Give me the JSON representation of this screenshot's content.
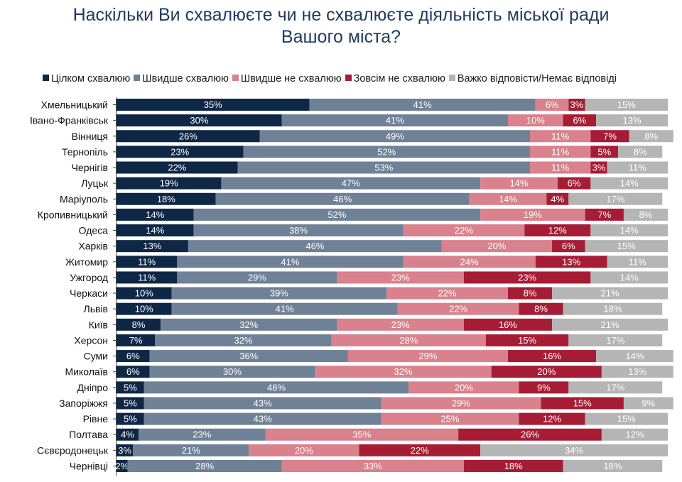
{
  "chart_data": {
    "type": "bar",
    "orientation": "horizontal",
    "stacked": true,
    "title_lines": [
      "Наскільки Ви схвалюєте чи не схвалюєте діяльність міської ради",
      "Вашого міста?"
    ],
    "legend_position": "top",
    "grid": false,
    "xlim": [
      0,
      100
    ],
    "categories": [
      "Хмельницький",
      "Івано-Франківськ",
      "Вінниця",
      "Тернопіль",
      "Чернігів",
      "Луцьк",
      "Маріуполь",
      "Кропивницький",
      "Одеса",
      "Харків",
      "Житомир",
      "Ужгород",
      "Черкаси",
      "Львів",
      "Київ",
      "Херсон",
      "Суми",
      "Миколаїв",
      "Дніпро",
      "Запоріжжя",
      "Рівне",
      "Полтава",
      "Сєвєродонецьк",
      "Чернівці"
    ],
    "series": [
      {
        "name": "Цілком схвалюю",
        "color": "#0f2746",
        "label_color": "#ffffff",
        "values": [
          35,
          30,
          26,
          23,
          22,
          19,
          18,
          14,
          14,
          13,
          11,
          11,
          10,
          10,
          8,
          7,
          6,
          6,
          5,
          5,
          5,
          4,
          3,
          2
        ]
      },
      {
        "name": "Швидше схвалюю",
        "color": "#6f8196",
        "label_color": "#ffffff",
        "values": [
          41,
          41,
          49,
          52,
          53,
          47,
          46,
          52,
          38,
          46,
          41,
          29,
          39,
          41,
          32,
          32,
          36,
          30,
          48,
          43,
          43,
          23,
          21,
          28
        ]
      },
      {
        "name": "Швидше не схвалюю",
        "color": "#d9818c",
        "label_color": "#ffffff",
        "values": [
          6,
          10,
          11,
          11,
          11,
          14,
          14,
          19,
          22,
          20,
          24,
          23,
          22,
          22,
          23,
          28,
          29,
          32,
          20,
          29,
          25,
          35,
          20,
          33
        ]
      },
      {
        "name": "Зовсім не схвалюю",
        "color": "#a61c35",
        "label_color": "#ffffff",
        "values": [
          3,
          6,
          7,
          5,
          3,
          6,
          4,
          7,
          12,
          6,
          13,
          23,
          8,
          8,
          16,
          15,
          16,
          20,
          9,
          15,
          12,
          26,
          22,
          18
        ]
      },
      {
        "name": "Важко відповісти/Немає відповіді",
        "color": "#b5b5b5",
        "label_color": "#ffffff",
        "values": [
          15,
          13,
          8,
          8,
          11,
          14,
          17,
          8,
          14,
          15,
          11,
          14,
          21,
          18,
          21,
          17,
          14,
          13,
          17,
          9,
          15,
          12,
          34,
          18
        ]
      }
    ]
  }
}
